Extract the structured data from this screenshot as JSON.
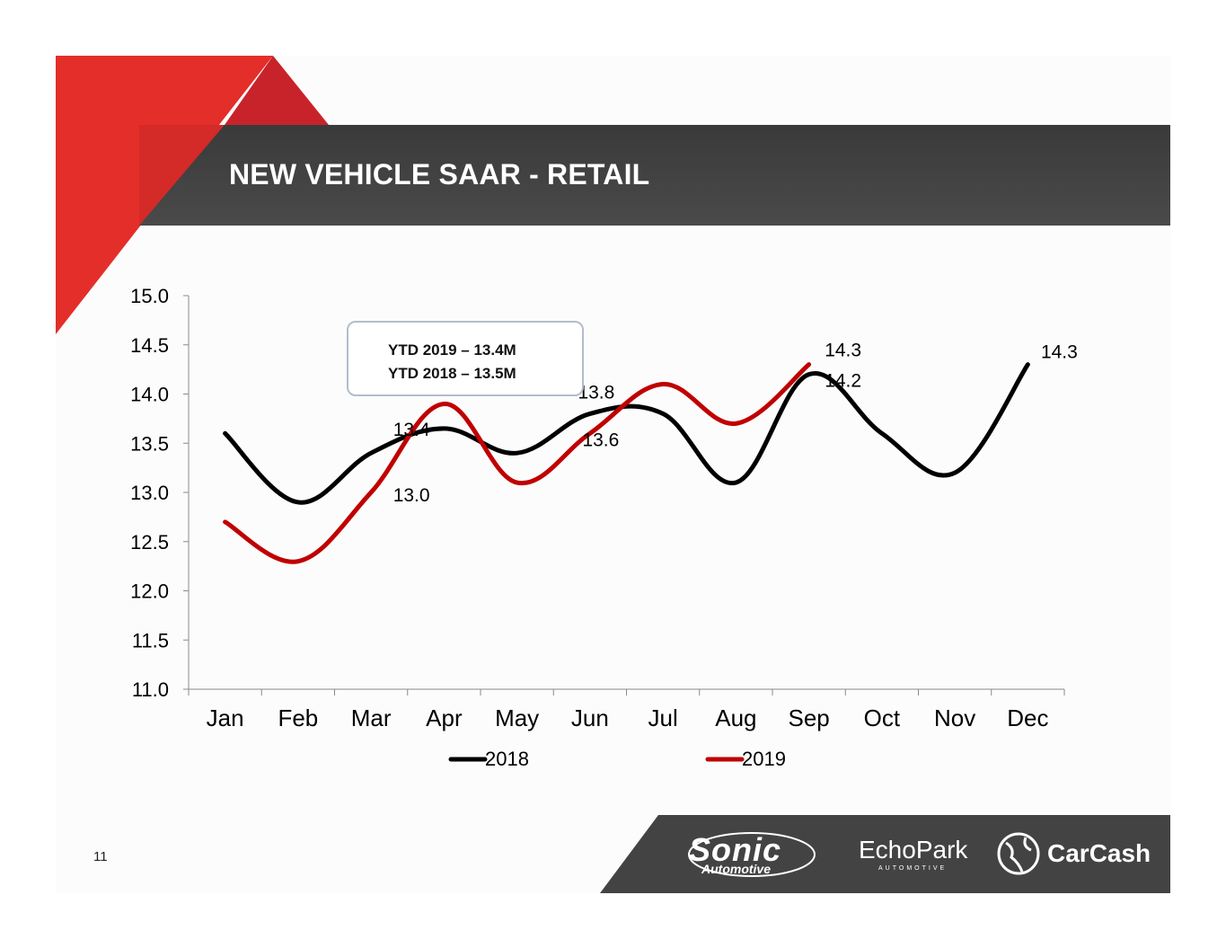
{
  "slide": {
    "title": "NEW VEHICLE SAAR - RETAIL",
    "page_number": "11",
    "brand_colors": {
      "red": "#e42e2a",
      "dark_red": "#c8232a",
      "header_gray": "#404040"
    }
  },
  "annotation": {
    "line1": "YTD 2019 – 13.4M",
    "line2": "YTD 2018 – 13.5M"
  },
  "logos": {
    "sonic": {
      "main": "Sonic",
      "sub": "Automotive"
    },
    "echopark": {
      "main": "EchoPark",
      "sub": "AUTOMOTIVE"
    },
    "carcash": {
      "main": "CarCash",
      "icon": "carcash-globe-icon"
    }
  },
  "chart_data": {
    "type": "line",
    "categories": [
      "Jan",
      "Feb",
      "Mar",
      "Apr",
      "May",
      "Jun",
      "Jul",
      "Aug",
      "Sep",
      "Oct",
      "Nov",
      "Dec"
    ],
    "series": [
      {
        "name": "2018",
        "color": "#000000",
        "values": [
          13.6,
          12.9,
          13.4,
          13.65,
          13.4,
          13.8,
          13.8,
          13.1,
          14.2,
          13.6,
          13.2,
          14.3
        ]
      },
      {
        "name": "2019",
        "color": "#c00000",
        "values": [
          12.7,
          12.3,
          13.0,
          13.9,
          13.1,
          13.6,
          14.1,
          13.7,
          14.3,
          null,
          null,
          null
        ]
      }
    ],
    "ylim": [
      11.0,
      15.0
    ],
    "yticks": [
      "15.0",
      "14.5",
      "14.0",
      "13.5",
      "13.0",
      "12.5",
      "12.0",
      "11.5",
      "11.0"
    ],
    "ytick_values": [
      15.0,
      14.5,
      14.0,
      13.5,
      13.0,
      12.5,
      12.0,
      11.5,
      11.0
    ],
    "data_labels": [
      {
        "text": "13.4",
        "series": "2018",
        "category": "Mar"
      },
      {
        "text": "13.0",
        "series": "2019",
        "category": "Mar"
      },
      {
        "text": "13.8",
        "series": "2018",
        "category": "Jun"
      },
      {
        "text": "13.6",
        "series": "2019",
        "category": "Jun"
      },
      {
        "text": "14.3",
        "series": "2019",
        "category": "Sep"
      },
      {
        "text": "14.2",
        "series": "2018",
        "category": "Sep"
      },
      {
        "text": "14.3",
        "series": "2018",
        "category": "Dec"
      }
    ],
    "legend_position": "bottom",
    "grid": false,
    "title": "",
    "xlabel": "",
    "ylabel": ""
  }
}
